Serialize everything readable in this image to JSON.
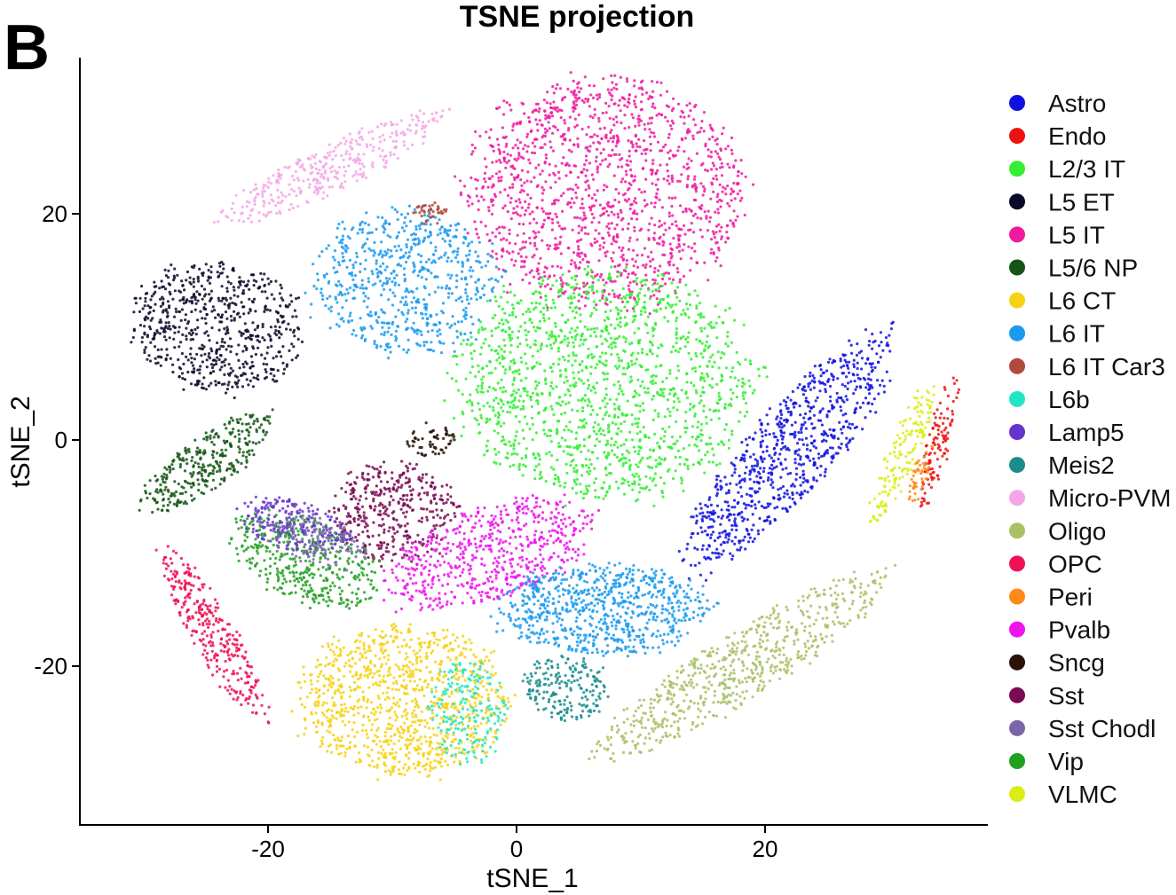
{
  "panel_label": "B",
  "chart_data": {
    "type": "scatter",
    "title": "TSNE projection",
    "xlabel": "tSNE_1",
    "ylabel": "tSNE_2",
    "xlim": [
      -35,
      38
    ],
    "ylim": [
      -34,
      35
    ],
    "xticks": [
      -20,
      0,
      20
    ],
    "yticks": [
      -20,
      0,
      20
    ],
    "grid": false,
    "legend_position": "right",
    "legend": [
      {
        "name": "Astro",
        "color": "#1010e0"
      },
      {
        "name": "Endo",
        "color": "#ee1111"
      },
      {
        "name": "L2/3 IT",
        "color": "#33ee33"
      },
      {
        "name": "L5 ET",
        "color": "#0a0a2a"
      },
      {
        "name": "L5 IT",
        "color": "#ee1aa0"
      },
      {
        "name": "L5/6 NP",
        "color": "#135513"
      },
      {
        "name": "L6 CT",
        "color": "#f5d214"
      },
      {
        "name": "L6 IT",
        "color": "#1a9bf0"
      },
      {
        "name": "L6 IT Car3",
        "color": "#b04a3c"
      },
      {
        "name": "L6b",
        "color": "#22e6c3"
      },
      {
        "name": "Lamp5",
        "color": "#6633cc"
      },
      {
        "name": "Meis2",
        "color": "#1a8c8c"
      },
      {
        "name": "Micro-PVM",
        "color": "#f5a6e6"
      },
      {
        "name": "Oligo",
        "color": "#aac066"
      },
      {
        "name": "OPC",
        "color": "#ee1155"
      },
      {
        "name": "Peri",
        "color": "#ff8a1a"
      },
      {
        "name": "Pvalb",
        "color": "#ee14ee"
      },
      {
        "name": "Sncg",
        "color": "#2a120a"
      },
      {
        "name": "Sst",
        "color": "#7a0a55"
      },
      {
        "name": "Sst Chodl",
        "color": "#7a66aa"
      },
      {
        "name": "Vip",
        "color": "#22a022"
      },
      {
        "name": "VLMC",
        "color": "#d8ee14"
      }
    ],
    "clusters": [
      {
        "name": "L5 IT",
        "cx": 7,
        "cy": 22,
        "rx": 11,
        "ry": 10,
        "rot": 0,
        "n": 1400
      },
      {
        "name": "L2/3 IT",
        "cx": 7,
        "cy": 5,
        "rx": 12,
        "ry": 10,
        "rot": 0,
        "n": 1500
      },
      {
        "name": "L6 IT",
        "cx": -9,
        "cy": 14,
        "rx": 7.5,
        "ry": 6.5,
        "rot": 0,
        "n": 650
      },
      {
        "name": "L5 ET",
        "cx": -24,
        "cy": 10,
        "rx": 7,
        "ry": 5.5,
        "rot": -10,
        "n": 650
      },
      {
        "name": "Micro-PVM",
        "cx": -15,
        "cy": 24,
        "rx": 10,
        "ry": 2,
        "rot": 28,
        "n": 350
      },
      {
        "name": "Astro",
        "cx": 22,
        "cy": -1,
        "rx": 13,
        "ry": 3.5,
        "rot": 52,
        "n": 800
      },
      {
        "name": "VLMC",
        "cx": 31,
        "cy": -1.5,
        "rx": 7,
        "ry": 1.2,
        "rot": 70,
        "n": 160
      },
      {
        "name": "Endo",
        "cx": 34,
        "cy": 0,
        "rx": 6,
        "ry": 0.9,
        "rot": 78,
        "n": 110
      },
      {
        "name": "Peri",
        "cx": 32.5,
        "cy": -3,
        "rx": 3,
        "ry": 0.6,
        "rot": 75,
        "n": 50
      },
      {
        "name": "L5/6 NP",
        "cx": -25,
        "cy": -2,
        "rx": 6.5,
        "ry": 2.2,
        "rot": 40,
        "n": 320
      },
      {
        "name": "Sst",
        "cx": -10,
        "cy": -6.5,
        "rx": 5,
        "ry": 4.5,
        "rot": 0,
        "n": 400
      },
      {
        "name": "Pvalb",
        "cx": -2,
        "cy": -10,
        "rx": 9,
        "ry": 4,
        "rot": 22,
        "n": 600
      },
      {
        "name": "Vip",
        "cx": -17,
        "cy": -10.5,
        "rx": 6.5,
        "ry": 3.5,
        "rot": -25,
        "n": 420
      },
      {
        "name": "Lamp5",
        "cx": -18,
        "cy": -7.5,
        "rx": 4.5,
        "ry": 2.2,
        "rot": -15,
        "n": 220
      },
      {
        "name": "Sst Chodl",
        "cx": -16,
        "cy": -9,
        "rx": 4,
        "ry": 2,
        "rot": -20,
        "n": 120
      },
      {
        "name": "OPC",
        "cx": -24.5,
        "cy": -17,
        "rx": 8.5,
        "ry": 1.8,
        "rot": -62,
        "n": 320
      },
      {
        "name": "L6 CT",
        "cx": -9,
        "cy": -23,
        "rx": 8.5,
        "ry": 6.5,
        "rot": 0,
        "n": 1000
      },
      {
        "name": "L6b",
        "cx": -4,
        "cy": -24,
        "rx": 3,
        "ry": 4.5,
        "rot": 0,
        "n": 200
      },
      {
        "name": "L6 IT",
        "cx": 7,
        "cy": -15,
        "rx": 8.5,
        "ry": 4,
        "rot": 0,
        "n": 750
      },
      {
        "name": "Meis2",
        "cx": 4,
        "cy": -22,
        "rx": 3.5,
        "ry": 2.8,
        "rot": 0,
        "n": 200
      },
      {
        "name": "Oligo",
        "cx": 18,
        "cy": -20,
        "rx": 14,
        "ry": 2.8,
        "rot": 35,
        "n": 650
      },
      {
        "name": "L6 IT Car3",
        "cx": -7,
        "cy": 20,
        "rx": 1.5,
        "ry": 1,
        "rot": 0,
        "n": 40
      },
      {
        "name": "Sncg",
        "cx": -7,
        "cy": 0,
        "rx": 2,
        "ry": 1.5,
        "rot": 0,
        "n": 60
      }
    ]
  }
}
